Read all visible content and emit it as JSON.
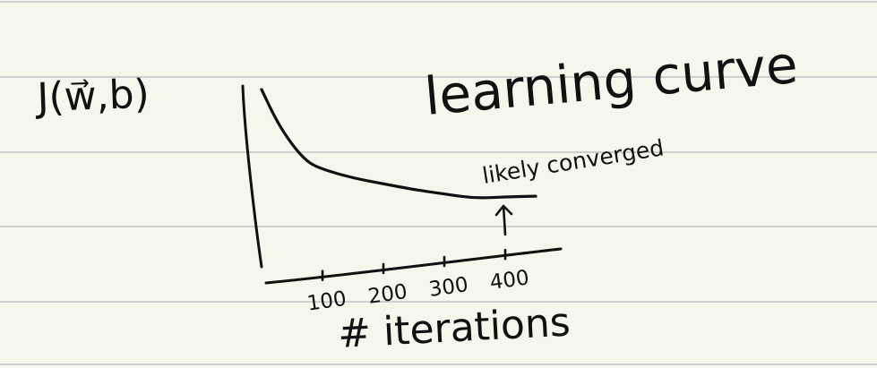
{
  "colors": {
    "paper": "#f6f6ec",
    "rule_line": "#cfcfcf",
    "ink": "#111111"
  },
  "chart_data": {
    "type": "line",
    "title": "learning curve",
    "ylabel": "J(w⃗,b)",
    "xlabel": "# iterations",
    "x_ticks": [
      "100",
      "200",
      "300",
      "400"
    ],
    "annotation": "likely converged",
    "annotation_x": 400,
    "xlim": [
      0,
      450
    ],
    "grid": false,
    "series": [
      {
        "x": [
          0,
          25,
          50,
          75,
          100,
          150,
          200,
          250,
          300,
          350,
          400,
          450
        ],
        "y": [
          1.0,
          0.78,
          0.62,
          0.5,
          0.45,
          0.39,
          0.35,
          0.31,
          0.28,
          0.25,
          0.26,
          0.265
        ]
      }
    ]
  }
}
